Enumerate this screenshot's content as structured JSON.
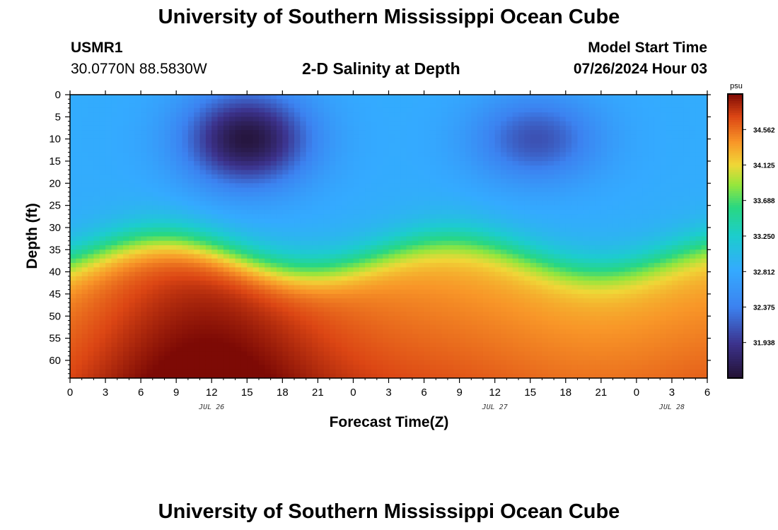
{
  "header": {
    "main_title": "University of Southern Mississippi Ocean Cube",
    "station_id": "USMR1",
    "coords": "30.0770N  88.5830W",
    "plot_title": "2-D Salinity at Depth",
    "start_label": "Model Start Time",
    "start_value": "07/26/2024 Hour 03"
  },
  "footer": {
    "title": "University of Southern Mississippi Ocean Cube"
  },
  "chart_data": {
    "type": "heatmap",
    "title": "2-D Salinity at Depth",
    "xlabel": "Forecast Time(Z)",
    "ylabel": "Depth (ft)",
    "x_range_hours": [
      0,
      54
    ],
    "x_tick_labels": [
      "0",
      "3",
      "6",
      "9",
      "12",
      "15",
      "18",
      "21",
      "0",
      "3",
      "6",
      "9",
      "12",
      "15",
      "18",
      "21",
      "0",
      "3",
      "6"
    ],
    "date_labels": [
      {
        "text": "JUL 26",
        "hour": 12
      },
      {
        "text": "JUL 27",
        "hour": 36
      },
      {
        "text": "JUL 28",
        "hour": 51
      }
    ],
    "y_range_ft": [
      0,
      64
    ],
    "y_reversed": true,
    "y_tick_labels": [
      "0",
      "5",
      "10",
      "15",
      "20",
      "25",
      "30",
      "35",
      "40",
      "45",
      "50",
      "55",
      "60"
    ],
    "colorbar": {
      "unit": "psu",
      "min": 31.5,
      "max": 35.0,
      "tick_labels": [
        "34.562",
        "34.125",
        "33.688",
        "33.250",
        "32.812",
        "32.375",
        "31.938"
      ]
    },
    "features": [
      {
        "description": "fresh surface minimum",
        "hour": 15,
        "depth_ft": 10,
        "salinity": 31.6
      },
      {
        "description": "fresh surface minimum",
        "hour": 39.5,
        "depth_ft": 10,
        "salinity": 32.1
      },
      {
        "description": "bottom maximum",
        "hour": 13,
        "depth_ft": 63,
        "salinity": 34.9
      }
    ],
    "grid": false
  }
}
